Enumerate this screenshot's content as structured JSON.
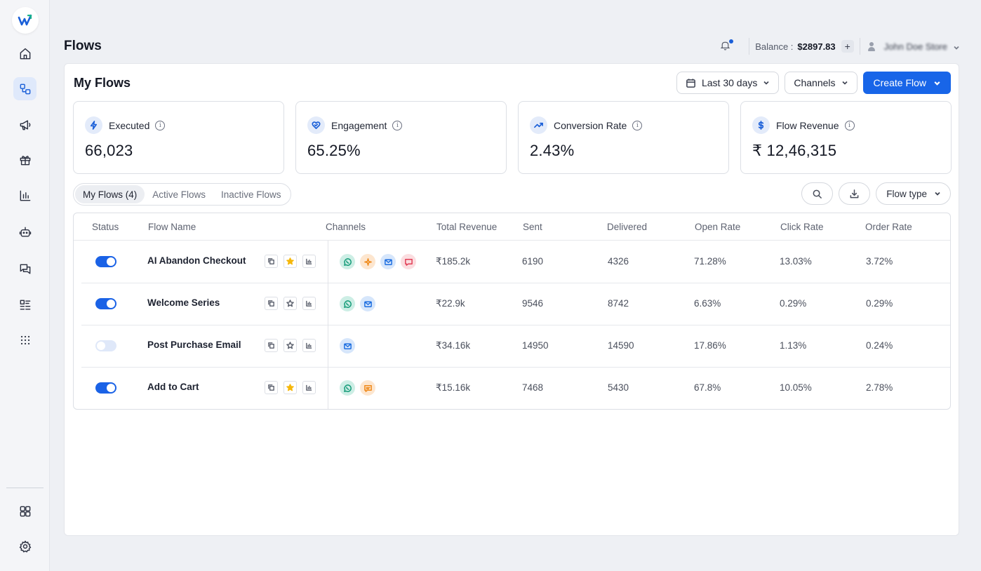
{
  "brand": {
    "accent": "#1865e8"
  },
  "sidebar": {
    "items": [
      {
        "name": "home-icon"
      },
      {
        "name": "flows-icon",
        "active": true
      },
      {
        "name": "megaphone-icon"
      },
      {
        "name": "gift-icon"
      },
      {
        "name": "analytics-icon"
      },
      {
        "name": "bot-icon"
      },
      {
        "name": "chat-icon"
      },
      {
        "name": "list-icon"
      },
      {
        "name": "apps-grid-icon"
      }
    ],
    "bottom": [
      {
        "name": "dashboard-grid-icon"
      },
      {
        "name": "settings-gear-icon"
      }
    ]
  },
  "header": {
    "title": "Flows",
    "balance_label": "Balance :",
    "balance_value": "$2897.83",
    "add_label": "+",
    "user_name": "John Doe Store"
  },
  "main": {
    "title": "My Flows",
    "date_filter": "Last 30 days",
    "channels_filter": "Channels",
    "create_label": "Create Flow"
  },
  "metrics": [
    {
      "label": "Executed",
      "value": "66,023",
      "icon": "bolt-icon"
    },
    {
      "label": "Engagement",
      "value": "65.25%",
      "icon": "heart-icon"
    },
    {
      "label": "Conversion Rate",
      "value": "2.43%",
      "icon": "trend-up-icon"
    },
    {
      "label": "Flow Revenue",
      "value": "₹ 12,46,315",
      "icon": "dollar-icon"
    }
  ],
  "tabs": [
    {
      "label": "My Flows (4)",
      "active": true
    },
    {
      "label": "Active Flows"
    },
    {
      "label": "Inactive Flows"
    }
  ],
  "flow_type_label": "Flow type",
  "table": {
    "columns": [
      "Status",
      "Flow Name",
      "Channels",
      "Total Revenue",
      "Sent",
      "Delivered",
      "Open Rate",
      "Click Rate",
      "Order Rate"
    ],
    "rows": [
      {
        "active": true,
        "name": "AI Abandon Checkout",
        "starred": true,
        "channels": [
          "whatsapp",
          "push",
          "email",
          "sms"
        ],
        "revenue": "₹185.2k",
        "sent": "6190",
        "delivered": "4326",
        "open_rate": "71.28%",
        "click_rate": "13.03%",
        "order_rate": "3.72%"
      },
      {
        "active": true,
        "name": "Welcome Series",
        "starred": false,
        "channels": [
          "whatsapp",
          "email"
        ],
        "revenue": "₹22.9k",
        "sent": "9546",
        "delivered": "8742",
        "open_rate": "6.63%",
        "click_rate": "0.29%",
        "order_rate": "0.29%"
      },
      {
        "active": false,
        "name": "Post Purchase Email",
        "starred": false,
        "channels": [
          "email"
        ],
        "revenue": "₹34.16k",
        "sent": "14950",
        "delivered": "14590",
        "open_rate": "17.86%",
        "click_rate": "1.13%",
        "order_rate": "0.24%"
      },
      {
        "active": true,
        "name": "Add to Cart",
        "starred": true,
        "channels": [
          "whatsapp",
          "chat"
        ],
        "revenue": "₹15.16k",
        "sent": "7468",
        "delivered": "5430",
        "open_rate": "67.8%",
        "click_rate": "10.05%",
        "order_rate": "2.78%"
      }
    ]
  }
}
